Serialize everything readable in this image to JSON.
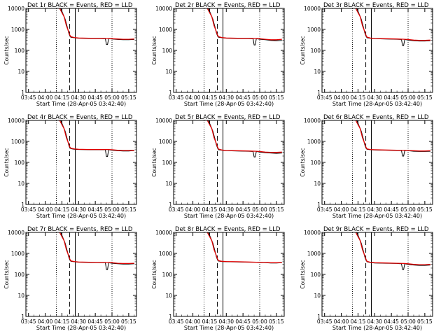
{
  "panel_title_suffix": " BLACK = Events, RED = LLD",
  "ylabel": "Counts/sec",
  "xlabel": "Start Time (28-Apr-05 03:42:40)",
  "x_tick_labels": [
    "03:45",
    "04:00",
    "04:15",
    "04:30",
    "04:45",
    "05:00",
    "05:15"
  ],
  "y_tick_labels": [
    "1",
    "10",
    "100",
    "1000",
    "10000"
  ],
  "colors": {
    "events": "#000000",
    "lld": "#e00000",
    "axes": "#000000"
  },
  "chart_data": [
    {
      "type": "line",
      "title": "Det 1r BLACK = Events, RED = LLD",
      "xlabel": "Start Time (28-Apr-05 03:42:40)",
      "ylabel": "Counts/sec",
      "x_range": [
        "03:42:40",
        "05:22:00"
      ],
      "ylim": [
        1,
        10000
      ],
      "yscale": "log",
      "vertical_lines": {
        "dotted": [
          "04:10",
          "05:00"
        ],
        "dashed": [
          "04:22"
        ],
        "solid": [
          "04:27"
        ]
      },
      "series": [
        {
          "name": "BLACK = Events",
          "x": [
            "04:14",
            "04:18",
            "04:20",
            "04:21",
            "04:22",
            "04:23",
            "04:26",
            "04:30",
            "04:40",
            "04:50",
            "04:53",
            "04:54",
            "04:55",
            "04:56",
            "04:57",
            "05:00",
            "05:05",
            "05:10",
            "05:15",
            "05:20"
          ],
          "values": [
            10000,
            3000,
            1200,
            700,
            500,
            420,
            400,
            380,
            370,
            370,
            360,
            360,
            190,
            190,
            360,
            350,
            330,
            320,
            320,
            330
          ]
        },
        {
          "name": "RED = LLD",
          "x": [
            "04:13",
            "04:17",
            "04:19",
            "04:21",
            "04:22",
            "04:23",
            "04:26",
            "04:30",
            "04:40",
            "04:50",
            "04:57",
            "05:00",
            "05:05",
            "05:10",
            "05:15",
            "05:20"
          ],
          "values": [
            10000,
            4000,
            1500,
            800,
            550,
            450,
            410,
            390,
            380,
            380,
            370,
            360,
            350,
            340,
            340,
            350
          ]
        }
      ]
    },
    {
      "type": "line",
      "title": "Det 2r BLACK = Events, RED = LLD",
      "xlabel": "Start Time (28-Apr-05 03:42:40)",
      "ylabel": "Counts/sec",
      "x_range": [
        "03:42:40",
        "05:22:00"
      ],
      "ylim": [
        1,
        10000
      ],
      "yscale": "log",
      "vertical_lines": {
        "dotted": [
          "04:10",
          "05:00"
        ],
        "dashed": [
          "04:22"
        ],
        "solid": [
          "04:27"
        ]
      },
      "series": [
        {
          "name": "BLACK = Events",
          "x": [
            "04:14",
            "04:18",
            "04:20",
            "04:21",
            "04:22",
            "04:23",
            "04:26",
            "04:30",
            "04:40",
            "04:50",
            "04:53",
            "04:54",
            "04:55",
            "04:56",
            "04:57",
            "05:00",
            "05:05",
            "05:10",
            "05:15",
            "05:20"
          ],
          "values": [
            10000,
            3000,
            1200,
            700,
            500,
            420,
            400,
            380,
            370,
            370,
            360,
            360,
            180,
            180,
            360,
            340,
            320,
            300,
            290,
            300
          ]
        },
        {
          "name": "RED = LLD",
          "x": [
            "04:13",
            "04:17",
            "04:19",
            "04:21",
            "04:22",
            "04:23",
            "04:26",
            "04:30",
            "04:40",
            "04:50",
            "04:57",
            "05:00",
            "05:05",
            "05:10",
            "05:15",
            "05:20"
          ],
          "values": [
            10000,
            4000,
            1500,
            800,
            550,
            450,
            410,
            390,
            380,
            380,
            370,
            360,
            340,
            320,
            320,
            340
          ]
        }
      ]
    },
    {
      "type": "line",
      "title": "Det 3r BLACK = Events, RED = LLD",
      "xlabel": "Start Time (28-Apr-05 03:42:40)",
      "ylabel": "Counts/sec",
      "x_range": [
        "03:42:40",
        "05:22:00"
      ],
      "ylim": [
        1,
        10000
      ],
      "yscale": "log",
      "vertical_lines": {
        "dotted": [
          "04:10",
          "05:00"
        ],
        "dashed": [
          "04:22"
        ],
        "solid": [
          "04:27"
        ]
      },
      "series": [
        {
          "name": "BLACK = Events",
          "x": [
            "04:14",
            "04:18",
            "04:20",
            "04:21",
            "04:22",
            "04:23",
            "04:26",
            "04:30",
            "04:40",
            "04:50",
            "04:53",
            "04:54",
            "04:55",
            "04:56",
            "04:57",
            "05:00",
            "05:05",
            "05:10",
            "05:15",
            "05:20"
          ],
          "values": [
            10000,
            3000,
            1200,
            700,
            500,
            400,
            380,
            360,
            350,
            340,
            330,
            330,
            170,
            170,
            330,
            310,
            290,
            280,
            280,
            290
          ]
        },
        {
          "name": "RED = LLD",
          "x": [
            "04:13",
            "04:17",
            "04:19",
            "04:21",
            "04:22",
            "04:23",
            "04:26",
            "04:30",
            "04:40",
            "04:50",
            "04:57",
            "05:00",
            "05:05",
            "05:10",
            "05:15",
            "05:20"
          ],
          "values": [
            10000,
            4000,
            1500,
            800,
            550,
            430,
            390,
            370,
            360,
            350,
            340,
            330,
            310,
            300,
            300,
            310
          ]
        }
      ]
    },
    {
      "type": "line",
      "title": "Det 4r BLACK = Events, RED = LLD",
      "xlabel": "Start Time (28-Apr-05 03:42:40)",
      "ylabel": "Counts/sec",
      "x_range": [
        "03:42:40",
        "05:22:00"
      ],
      "ylim": [
        1,
        10000
      ],
      "yscale": "log",
      "vertical_lines": {
        "dotted": [
          "04:10",
          "05:00"
        ],
        "dashed": [
          "04:22"
        ],
        "solid": [
          "04:27"
        ]
      },
      "series": [
        {
          "name": "BLACK = Events",
          "x": [
            "04:14",
            "04:18",
            "04:20",
            "04:21",
            "04:22",
            "04:23",
            "04:26",
            "04:30",
            "04:40",
            "04:50",
            "04:53",
            "04:54",
            "04:55",
            "04:56",
            "04:57",
            "05:00",
            "05:05",
            "05:10",
            "05:15",
            "05:20"
          ],
          "values": [
            10000,
            3000,
            1200,
            700,
            500,
            450,
            420,
            410,
            400,
            400,
            400,
            400,
            190,
            190,
            400,
            380,
            360,
            350,
            350,
            370
          ]
        },
        {
          "name": "RED = LLD",
          "x": [
            "04:13",
            "04:17",
            "04:19",
            "04:21",
            "04:22",
            "04:23",
            "04:26",
            "04:30",
            "04:40",
            "04:50",
            "04:57",
            "05:00",
            "05:05",
            "05:10",
            "05:15",
            "05:20"
          ],
          "values": [
            10000,
            4000,
            1500,
            800,
            550,
            470,
            440,
            420,
            410,
            410,
            410,
            400,
            380,
            370,
            370,
            380
          ]
        }
      ]
    },
    {
      "type": "line",
      "title": "Det 5r BLACK = Events, RED = LLD",
      "xlabel": "Start Time (28-Apr-05 03:42:40)",
      "ylabel": "Counts/sec",
      "x_range": [
        "03:42:40",
        "05:22:00"
      ],
      "ylim": [
        1,
        10000
      ],
      "yscale": "log",
      "vertical_lines": {
        "dotted": [
          "04:10",
          "05:00"
        ],
        "dashed": [
          "04:22"
        ],
        "solid": [
          "04:27"
        ]
      },
      "series": [
        {
          "name": "BLACK = Events",
          "x": [
            "04:14",
            "04:18",
            "04:20",
            "04:21",
            "04:22",
            "04:23",
            "04:26",
            "04:30",
            "04:40",
            "04:50",
            "04:53",
            "04:54",
            "04:55",
            "04:56",
            "04:57",
            "05:00",
            "05:05",
            "05:10",
            "05:15",
            "05:20"
          ],
          "values": [
            10000,
            3000,
            1200,
            700,
            500,
            400,
            380,
            360,
            350,
            340,
            330,
            330,
            180,
            180,
            330,
            310,
            290,
            280,
            270,
            280
          ]
        },
        {
          "name": "RED = LLD",
          "x": [
            "04:13",
            "04:17",
            "04:19",
            "04:21",
            "04:22",
            "04:23",
            "04:26",
            "04:30",
            "04:40",
            "04:50",
            "04:57",
            "05:00",
            "05:05",
            "05:10",
            "05:15",
            "05:20"
          ],
          "values": [
            10000,
            4000,
            1500,
            800,
            550,
            430,
            390,
            370,
            360,
            350,
            340,
            330,
            310,
            300,
            300,
            310
          ]
        }
      ]
    },
    {
      "type": "line",
      "title": "Det 6r BLACK = Events, RED = LLD",
      "xlabel": "Start Time (28-Apr-05 03:42:40)",
      "ylabel": "Counts/sec",
      "x_range": [
        "03:42:40",
        "05:22:00"
      ],
      "ylim": [
        1,
        10000
      ],
      "yscale": "log",
      "vertical_lines": {
        "dotted": [
          "04:10",
          "05:00"
        ],
        "dashed": [
          "04:22"
        ],
        "solid": [
          "04:27"
        ]
      },
      "series": [
        {
          "name": "BLACK = Events",
          "x": [
            "04:14",
            "04:18",
            "04:20",
            "04:21",
            "04:22",
            "04:23",
            "04:26",
            "04:30",
            "04:40",
            "04:50",
            "04:53",
            "04:54",
            "04:55",
            "04:56",
            "04:57",
            "05:00",
            "05:05",
            "05:10",
            "05:15",
            "05:20"
          ],
          "values": [
            10000,
            3000,
            1200,
            700,
            500,
            420,
            400,
            390,
            380,
            370,
            370,
            370,
            200,
            200,
            370,
            360,
            340,
            330,
            330,
            340
          ]
        },
        {
          "name": "RED = LLD",
          "x": [
            "04:13",
            "04:17",
            "04:19",
            "04:21",
            "04:22",
            "04:23",
            "04:26",
            "04:30",
            "04:40",
            "04:50",
            "04:57",
            "05:00",
            "05:05",
            "05:10",
            "05:15",
            "05:20"
          ],
          "values": [
            10000,
            4000,
            1500,
            800,
            550,
            440,
            410,
            400,
            390,
            380,
            380,
            370,
            360,
            350,
            350,
            360
          ]
        }
      ]
    },
    {
      "type": "line",
      "title": "Det 7r BLACK = Events, RED = LLD",
      "xlabel": "Start Time (28-Apr-05 03:42:40)",
      "ylabel": "Counts/sec",
      "x_range": [
        "03:42:40",
        "05:22:00"
      ],
      "ylim": [
        1,
        10000
      ],
      "yscale": "log",
      "vertical_lines": {
        "dotted": [
          "04:10",
          "05:00"
        ],
        "dashed": [
          "04:22"
        ],
        "solid": [
          "04:27"
        ]
      },
      "series": [
        {
          "name": "BLACK = Events",
          "x": [
            "04:14",
            "04:18",
            "04:20",
            "04:21",
            "04:22",
            "04:23",
            "04:26",
            "04:30",
            "04:40",
            "04:50",
            "04:53",
            "04:54",
            "04:55",
            "04:56",
            "04:57",
            "05:00",
            "05:05",
            "05:10",
            "05:15",
            "05:20"
          ],
          "values": [
            10000,
            3000,
            1200,
            700,
            500,
            420,
            400,
            380,
            370,
            360,
            360,
            360,
            170,
            170,
            360,
            340,
            320,
            310,
            310,
            320
          ]
        },
        {
          "name": "RED = LLD",
          "x": [
            "04:13",
            "04:17",
            "04:19",
            "04:21",
            "04:22",
            "04:23",
            "04:26",
            "04:30",
            "04:40",
            "04:50",
            "04:57",
            "05:00",
            "05:05",
            "05:10",
            "05:15",
            "05:20"
          ],
          "values": [
            10000,
            4000,
            1500,
            800,
            550,
            440,
            410,
            390,
            380,
            370,
            370,
            360,
            340,
            330,
            330,
            340
          ]
        }
      ]
    },
    {
      "type": "line",
      "title": "Det 8r BLACK = Events, RED = LLD",
      "xlabel": "Start Time (28-Apr-05 03:42:40)",
      "ylabel": "Counts/sec",
      "x_range": [
        "03:42:40",
        "05:22:00"
      ],
      "ylim": [
        1,
        10000
      ],
      "yscale": "log",
      "vertical_lines": {
        "dotted": [
          "04:10",
          "05:00"
        ],
        "dashed": [
          "04:22"
        ],
        "solid": [
          "04:27"
        ]
      },
      "series": [
        {
          "name": "BLACK = Events",
          "x": [
            "04:14",
            "04:18",
            "04:20",
            "04:21",
            "04:22",
            "04:23",
            "04:26",
            "04:30",
            "04:40",
            "04:50",
            "04:53",
            "04:54",
            "04:55",
            "04:56",
            "04:57",
            "05:00",
            "05:05",
            "05:10",
            "05:15",
            "05:20"
          ],
          "values": [
            10000,
            3000,
            1200,
            700,
            500,
            430,
            410,
            400,
            390,
            380,
            380,
            380,
            380,
            380,
            380,
            370,
            360,
            350,
            350,
            360
          ]
        },
        {
          "name": "RED = LLD",
          "x": [
            "04:13",
            "04:17",
            "04:19",
            "04:21",
            "04:22",
            "04:23",
            "04:26",
            "04:30",
            "04:40",
            "04:50",
            "04:57",
            "05:00",
            "05:05",
            "05:10",
            "05:15",
            "05:20"
          ],
          "values": [
            10000,
            4000,
            1500,
            800,
            550,
            450,
            420,
            410,
            400,
            390,
            380,
            380,
            370,
            360,
            360,
            370
          ]
        }
      ]
    },
    {
      "type": "line",
      "title": "Det 9r BLACK = Events, RED = LLD",
      "xlabel": "Start Time (28-Apr-05 03:42:40)",
      "ylabel": "Counts/sec",
      "x_range": [
        "03:42:40",
        "05:22:00"
      ],
      "ylim": [
        1,
        10000
      ],
      "yscale": "log",
      "vertical_lines": {
        "dotted": [
          "04:10",
          "05:00"
        ],
        "dashed": [
          "04:22"
        ],
        "solid": [
          "04:27"
        ]
      },
      "series": [
        {
          "name": "BLACK = Events",
          "x": [
            "04:14",
            "04:18",
            "04:20",
            "04:21",
            "04:22",
            "04:23",
            "04:26",
            "04:30",
            "04:40",
            "04:50",
            "04:53",
            "04:54",
            "04:55",
            "04:56",
            "04:57",
            "05:00",
            "05:05",
            "05:10",
            "05:15",
            "05:20"
          ],
          "values": [
            10000,
            3000,
            1200,
            700,
            500,
            400,
            370,
            350,
            340,
            330,
            320,
            320,
            170,
            170,
            320,
            300,
            280,
            270,
            270,
            280
          ]
        },
        {
          "name": "RED = LLD",
          "x": [
            "04:13",
            "04:17",
            "04:19",
            "04:21",
            "04:22",
            "04:23",
            "04:26",
            "04:30",
            "04:40",
            "04:50",
            "04:57",
            "05:00",
            "05:05",
            "05:10",
            "05:15",
            "05:20"
          ],
          "values": [
            10000,
            4000,
            1500,
            800,
            550,
            420,
            380,
            360,
            350,
            340,
            330,
            320,
            300,
            290,
            290,
            300
          ]
        }
      ]
    }
  ]
}
